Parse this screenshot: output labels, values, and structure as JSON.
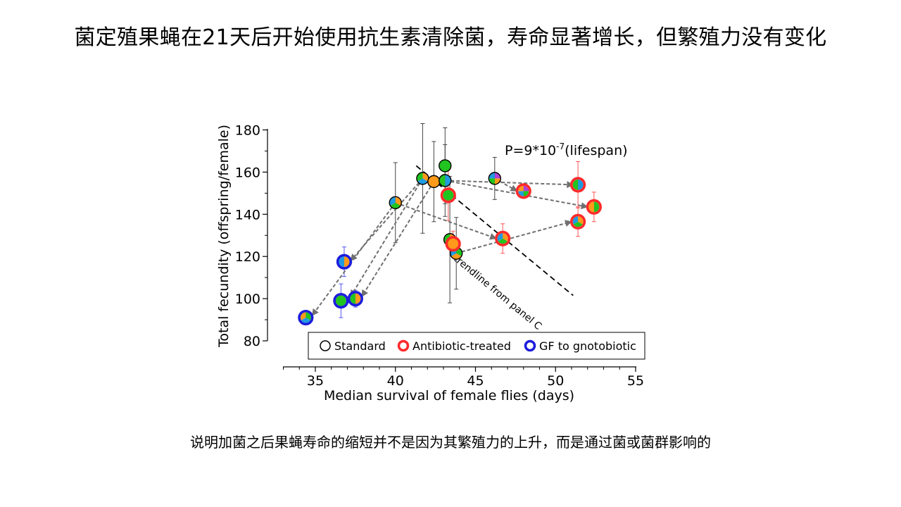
{
  "slide": {
    "title": "菌定殖果蝇在21天后开始使用抗生素清除菌，寿命显著增长，但繁殖力没有变化",
    "caption": "说明加菌之后果蝇寿命的缩短并不是因为其繁殖力的上升，而是通过菌或菌群影响的"
  },
  "chart_data": {
    "type": "scatter",
    "xlabel": "Median survival of female flies (days)",
    "ylabel": "Total fecundity (offspring/female)",
    "xlim": [
      33,
      55
    ],
    "ylim": [
      80,
      185
    ],
    "xticks": [
      35,
      40,
      45,
      50,
      55
    ],
    "yticks": [
      80,
      100,
      120,
      140,
      160,
      180
    ],
    "grid": false,
    "legend_position": "bottom",
    "legend": [
      {
        "label": "Standard",
        "ring_color": "#000000"
      },
      {
        "label": "Antibiotic-treated",
        "ring_color": "#ff2a2a"
      },
      {
        "label": "GF to gnotobiotic",
        "ring_color": "#1c1cdc"
      }
    ],
    "annotation_pvalue": {
      "prefix": "P=9*10",
      "exponent": "-7",
      "suffix": "(lifespan)"
    },
    "trendline": {
      "label": "trendline from panel C",
      "from": [
        41.3,
        163
      ],
      "to": [
        51.1,
        101.5
      ]
    },
    "colors": {
      "green": "#22c41f",
      "orange": "#ff9a1a",
      "blue": "#1f9be0",
      "purple": "#b040d8",
      "red": "#ff2a2a",
      "navy": "#1c1cdc",
      "arrow": "#707070"
    },
    "points": [
      {
        "x": 34.4,
        "y": 91,
        "group": "GF to gnotobiotic",
        "fill": [
          "green",
          "blue",
          "orange"
        ],
        "err": 3
      },
      {
        "x": 36.6,
        "y": 99,
        "group": "GF to gnotobiotic",
        "fill": [
          "green"
        ],
        "err": 8
      },
      {
        "x": 36.8,
        "y": 117.5,
        "group": "GF to gnotobiotic",
        "fill": [
          "orange",
          "blue"
        ],
        "err": 7
      },
      {
        "x": 37.5,
        "y": 100,
        "group": "GF to gnotobiotic",
        "fill": [
          "orange",
          "green"
        ],
        "err": 4
      },
      {
        "x": 40.0,
        "y": 145.5,
        "group": "Standard",
        "fill": [
          "orange",
          "green",
          "blue"
        ],
        "err": 19
      },
      {
        "x": 41.7,
        "y": 157,
        "group": "Standard",
        "fill": [
          "orange",
          "blue",
          "green"
        ],
        "err": 26
      },
      {
        "x": 42.4,
        "y": 155.5,
        "group": "Standard",
        "fill": [
          "orange"
        ],
        "err": 19
      },
      {
        "x": 43.1,
        "y": 156,
        "group": "Standard",
        "fill": [
          "blue",
          "green"
        ],
        "err": 17
      },
      {
        "x": 43.1,
        "y": 163,
        "group": "Standard",
        "fill": [
          "green"
        ],
        "err": 18
      },
      {
        "x": 43.4,
        "y": 128,
        "group": "Standard",
        "fill": [
          "orange",
          "green"
        ],
        "err": 30
      },
      {
        "x": 43.8,
        "y": 121.5,
        "group": "Standard",
        "fill": [
          "green",
          "orange",
          "blue"
        ],
        "err": 17
      },
      {
        "x": 46.2,
        "y": 157,
        "group": "Standard",
        "fill": [
          "purple",
          "orange",
          "green",
          "blue"
        ],
        "err": 10
      },
      {
        "x": 43.3,
        "y": 149,
        "group": "Antibiotic-treated",
        "fill": [
          "green"
        ],
        "err": 12
      },
      {
        "x": 43.6,
        "y": 126,
        "group": "Antibiotic-treated",
        "fill": [
          "orange"
        ],
        "err": 6
      },
      {
        "x": 46.7,
        "y": 128.5,
        "group": "Antibiotic-treated",
        "fill": [
          "orange",
          "green",
          "blue"
        ],
        "err": 7
      },
      {
        "x": 48.0,
        "y": 151,
        "group": "Antibiotic-treated",
        "fill": [
          "purple",
          "green",
          "blue",
          "orange"
        ],
        "err": 3
      },
      {
        "x": 51.4,
        "y": 154,
        "group": "Antibiotic-treated",
        "fill": [
          "blue",
          "green"
        ],
        "err": 11
      },
      {
        "x": 51.4,
        "y": 136.5,
        "group": "Antibiotic-treated",
        "fill": [
          "orange",
          "green",
          "blue"
        ],
        "err": 7
      },
      {
        "x": 52.4,
        "y": 143.5,
        "group": "Antibiotic-treated",
        "fill": [
          "green",
          "orange"
        ],
        "err": 7
      }
    ],
    "arrows": [
      {
        "from": [
          43.1,
          156
        ],
        "to": [
          51.1,
          154
        ]
      },
      {
        "from": [
          46.2,
          157
        ],
        "to": [
          47.6,
          151
        ]
      },
      {
        "from": [
          43.1,
          156
        ],
        "to": [
          52.0,
          143.5
        ]
      },
      {
        "from": [
          40.0,
          145.5
        ],
        "to": [
          46.3,
          128.5
        ]
      },
      {
        "from": [
          43.8,
          121.5
        ],
        "to": [
          51.0,
          136.5
        ]
      },
      {
        "from": [
          41.7,
          157
        ],
        "to": [
          37.2,
          118
        ]
      },
      {
        "from": [
          40.0,
          145.5
        ],
        "to": [
          34.8,
          92
        ]
      },
      {
        "from": [
          41.7,
          157
        ],
        "to": [
          37.2,
          101
        ]
      },
      {
        "from": [
          42.4,
          155.5
        ],
        "to": [
          37.9,
          101
        ]
      }
    ]
  }
}
